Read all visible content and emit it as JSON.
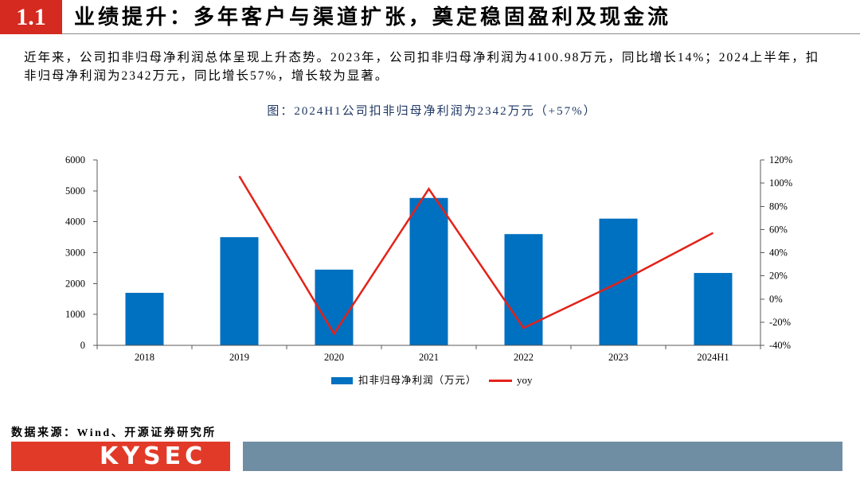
{
  "header": {
    "section_number": "1.1",
    "title": "业绩提升：多年客户与渠道扩张，奠定稳固盈利及现金流"
  },
  "intro": {
    "lines": [
      "近年来，公司扣非归母净利润总体呈现上升态势。2023年，公司扣非归母净利润为4100.98万元，同比增长14%；2024上半年，扣",
      "非归母净利润为2342万元，同比增长57%，增长较为显著。"
    ]
  },
  "chart_data": {
    "type": "bar",
    "title": "图：2024H1公司扣非归母净利润为2342万元（+57%）",
    "categories": [
      "2018",
      "2019",
      "2020",
      "2021",
      "2022",
      "2023",
      "2024H1"
    ],
    "series": [
      {
        "name": "扣非归母净利润（万元）",
        "type": "bar",
        "axis": "left",
        "values": [
          1700,
          3500,
          2450,
          4770,
          3600,
          4100.98,
          2342
        ]
      },
      {
        "name": "yoy",
        "type": "line",
        "axis": "right",
        "unit": "%",
        "values": [
          null,
          106,
          -30,
          95,
          -25,
          14,
          57
        ]
      }
    ],
    "y_left": {
      "min": 0,
      "max": 6000,
      "ticks": [
        0,
        1000,
        2000,
        3000,
        4000,
        5000,
        6000
      ]
    },
    "y_right": {
      "min": -40,
      "max": 120,
      "unit": "%",
      "ticks": [
        -40,
        -20,
        0,
        20,
        40,
        60,
        80,
        100,
        120
      ]
    },
    "grid": false,
    "legend": "bottom-center"
  },
  "source": {
    "text": "数据来源：Wind、开源证券研究所"
  },
  "footer": {
    "logo_text": "KYSEC"
  },
  "colors": {
    "header_red": "#d42a20",
    "logo_red": "#e23a28",
    "bar_blue": "#0070c0",
    "line_red": "#e32219",
    "footer_bar": "#6f8ea3",
    "caption_navy": "#1f3864"
  }
}
